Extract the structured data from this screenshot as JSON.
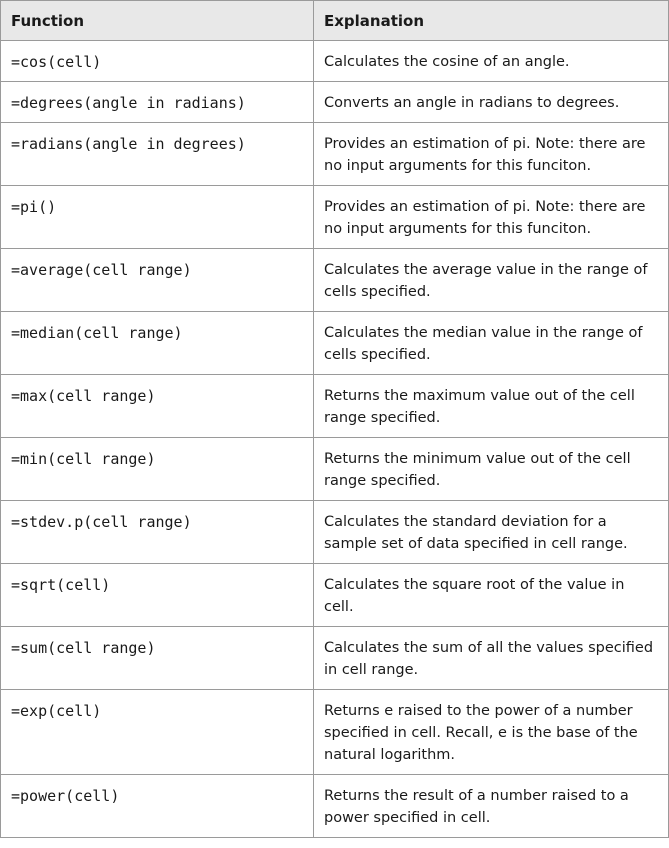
{
  "table": {
    "headers": {
      "function": "Function",
      "explanation": "Explanation"
    },
    "rows": [
      {
        "function": "=cos(cell)",
        "explanation": "Calculates the cosine of an angle."
      },
      {
        "function": "=degrees(angle in radians)",
        "explanation": "Converts an angle in radians to degrees."
      },
      {
        "function": "=radians(angle in degrees)",
        "explanation": "Provides an estimation of pi. Note: there are no input arguments for this funciton."
      },
      {
        "function": "=pi()",
        "explanation": "Provides an estimation of pi. Note: there are no input arguments for this funciton."
      },
      {
        "function": "=average(cell range)",
        "explanation": "Calculates the average value in the range of cells specified."
      },
      {
        "function": "=median(cell range)",
        "explanation": "Calculates the median value in the range of cells specified."
      },
      {
        "function": "=max(cell range)",
        "explanation": "Returns the maximum value out of the cell range specified."
      },
      {
        "function": "=min(cell range)",
        "explanation": "Returns the minimum value out of the cell range specified."
      },
      {
        "function": "=stdev.p(cell range)",
        "explanation": "Calculates the standard deviation for a sample set of data specified in cell range."
      },
      {
        "function": "=sqrt(cell)",
        "explanation": "Calculates the square root of the value in cell."
      },
      {
        "function": "=sum(cell range)",
        "explanation": "Calculates the sum of all the values specified in cell range."
      },
      {
        "function": "=exp(cell)",
        "explanation": "Returns e raised to the power of a number specified in cell. Recall, e is the base of the natural logarithm."
      },
      {
        "function": "=power(cell)",
        "explanation": "Returns the result of a number raised to a power specified in cell."
      }
    ]
  },
  "colors": {
    "header_background": "#e8e8e8",
    "border": "#9a9a9a",
    "text": "#1a1a1a"
  }
}
